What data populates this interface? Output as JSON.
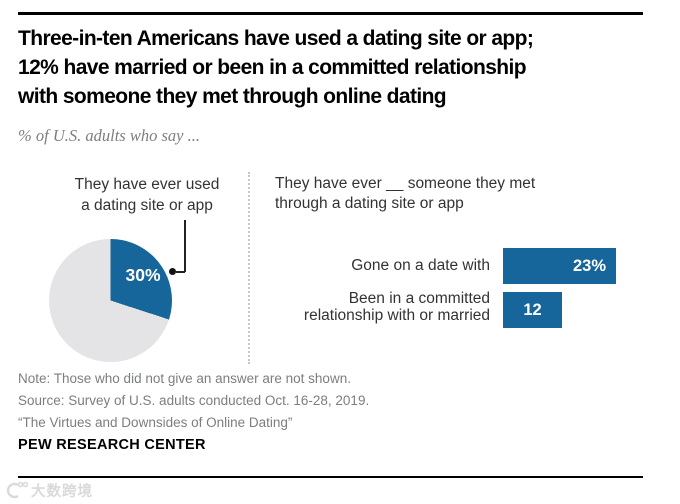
{
  "header": {
    "title_lines": [
      "Three-in-ten Americans have used a dating site or app;",
      "12% have married or been in a committed relationship",
      "with someone they met through online dating"
    ],
    "subtitle": "% of U.S. adults who say ..."
  },
  "chart_data": [
    {
      "type": "pie",
      "title": "They have ever used a dating site or app",
      "label_lines": [
        "They have ever used",
        "a dating site or app"
      ],
      "slices": [
        {
          "label": "They have ever used a dating site or app",
          "value": 30,
          "color": "#16669c",
          "data_label": "30%"
        },
        {
          "label": "",
          "value": 70,
          "color": "#e4e4e6",
          "data_label": ""
        }
      ],
      "legend": "none"
    },
    {
      "type": "bar",
      "orientation": "horizontal",
      "title": "They have ever __ someone they met through a dating site or app",
      "title_lines": [
        "They have ever __ someone they met",
        "through a dating site or app"
      ],
      "categories": [
        "Gone on a date with",
        "Been in a committed relationship with or married"
      ],
      "category_lines": [
        [
          "Gone on a date with"
        ],
        [
          "Been in a committed",
          "relationship with or married"
        ]
      ],
      "values": [
        23,
        12
      ],
      "value_labels": [
        "23%",
        "12"
      ],
      "xlim": [
        0,
        30
      ],
      "bar_color": "#16669c",
      "grid": false,
      "legend": "none"
    }
  ],
  "footer": {
    "note": "Note: Those who did not give an answer are not shown.",
    "source": "Source: Survey of U.S. adults conducted Oct. 16-28, 2019.",
    "quote": "“The Virtues and Downsides of Online Dating”",
    "brand": "PEW RESEARCH CENTER"
  },
  "watermark": {
    "text": "大数跨境"
  },
  "colors": {
    "accent_blue": "#16669c",
    "pie_remainder_gray": "#e4e4e6",
    "note_gray": "#7b7e80",
    "label_dark": "#333333"
  }
}
